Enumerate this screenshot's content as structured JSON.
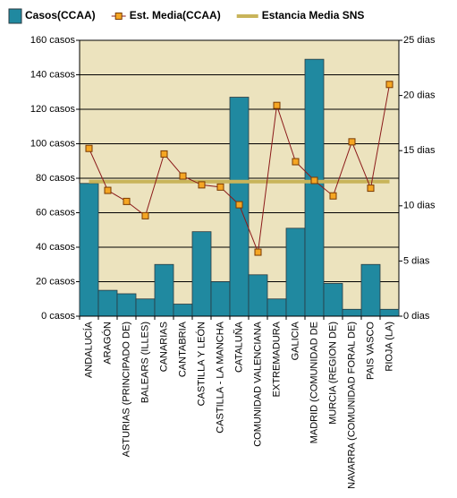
{
  "chart_data": {
    "type": "bar",
    "categories": [
      "ANDALUCÍA",
      "ARAGÓN",
      "ASTURIAS (PRINCIPADO DE)",
      "BALEARS (ILLES)",
      "CANARIAS",
      "CANTABRIA",
      "CASTILLA Y LEÓN",
      "CASTILLA - LA MANCHA",
      "CATALUÑA",
      "COMUNIDAD VALENCIANA",
      "EXTREMADURA",
      "GALICIA",
      "MADRID (COMUNIDAD DE",
      "MURCIA (REGION DE)",
      "NAVARRA (COMUNIDAD FORAL DE)",
      "PAIS VASCO",
      "RIOJA (LA)"
    ],
    "series": [
      {
        "name": "Casos(CCAA)",
        "type": "bar",
        "color": "#2089a0",
        "values": [
          77,
          15,
          13,
          10,
          30,
          7,
          49,
          20,
          127,
          24,
          10,
          51,
          149,
          19,
          4,
          30,
          4
        ]
      },
      {
        "name": "Est. Media(CCAA)",
        "type": "line",
        "axis": "y2",
        "color": "#8b1a1a",
        "marker_color": "#f5a623",
        "values": [
          15.2,
          11.4,
          10.4,
          9.1,
          14.7,
          12.7,
          11.9,
          11.7,
          10.1,
          5.8,
          19.1,
          14.0,
          12.3,
          10.9,
          15.8,
          11.6,
          21.0
        ]
      }
    ],
    "reference_line": {
      "name": "Estancia Media SNS",
      "value": 12.2,
      "axis": "y2",
      "color": "#c8b45a"
    },
    "ylim": [
      0,
      160
    ],
    "yticks": [
      {
        "value": 0,
        "label": "0 casos"
      },
      {
        "value": 20,
        "label": "20 casos"
      },
      {
        "value": 40,
        "label": "40 casos"
      },
      {
        "value": 60,
        "label": "60 casos"
      },
      {
        "value": 80,
        "label": "80 casos"
      },
      {
        "value": 100,
        "label": "100 casos"
      },
      {
        "value": 120,
        "label": "120 casos"
      },
      {
        "value": 140,
        "label": "140 casos"
      },
      {
        "value": 160,
        "label": "160 casos"
      }
    ],
    "y2lim": [
      0,
      25
    ],
    "y2ticks": [
      {
        "value": 0,
        "label": "0 dias"
      },
      {
        "value": 5,
        "label": "5 dias"
      },
      {
        "value": 10,
        "label": "10 dias"
      },
      {
        "value": 15,
        "label": "15 dias"
      },
      {
        "value": 20,
        "label": "20 dias"
      },
      {
        "value": 25,
        "label": "25 dias"
      }
    ],
    "grid": true,
    "plot_background": "#ece3be",
    "legend": "top"
  }
}
